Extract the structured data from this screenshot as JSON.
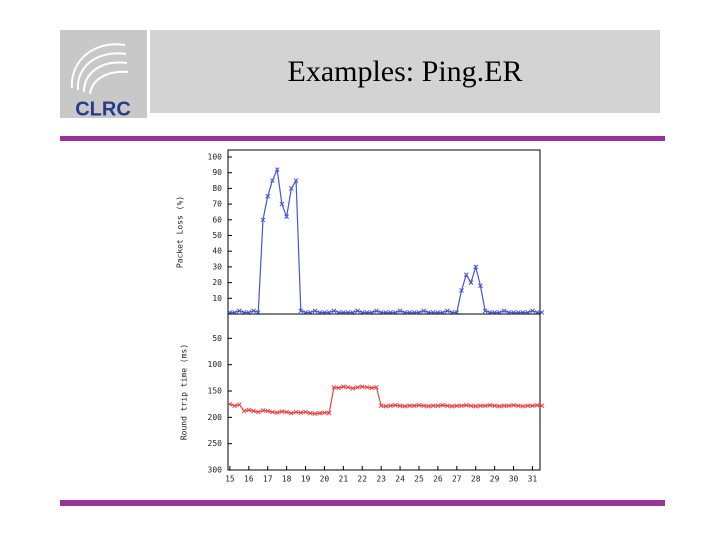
{
  "slide": {
    "title": "Examples: Ping.ER",
    "logo_text": "CLRC"
  },
  "chart_data": [
    {
      "type": "line",
      "ylabel": "Packet Loss (%)",
      "xlim": [
        14.9,
        31.4
      ],
      "ylim": [
        0,
        100
      ],
      "yticks": [
        10,
        20,
        30,
        40,
        50,
        60,
        70,
        80,
        90,
        100
      ],
      "x": [
        15,
        15.25,
        15.5,
        15.75,
        16,
        16.25,
        16.5,
        16.75,
        17,
        17.25,
        17.5,
        17.75,
        18,
        18.25,
        18.5,
        18.75,
        19,
        19.25,
        19.5,
        19.75,
        20,
        20.25,
        20.5,
        20.75,
        21,
        21.25,
        21.5,
        21.75,
        22,
        22.25,
        22.5,
        22.75,
        23,
        23.25,
        23.5,
        23.75,
        24,
        24.25,
        24.5,
        24.75,
        25,
        25.25,
        25.5,
        25.75,
        26,
        26.25,
        26.5,
        26.75,
        27,
        27.25,
        27.5,
        27.75,
        28,
        28.25,
        28.5,
        28.75,
        29,
        29.25,
        29.5,
        29.75,
        30,
        30.25,
        30.5,
        30.75,
        31,
        31.25,
        31.5
      ],
      "series": [
        {
          "name": "Packet Loss",
          "color": "#4455dd",
          "values": [
            1,
            1,
            2,
            1,
            1,
            2,
            1,
            60,
            75,
            85,
            92,
            70,
            62,
            80,
            85,
            2,
            1,
            1,
            2,
            1,
            1,
            1,
            2,
            1,
            1,
            1,
            1,
            2,
            1,
            1,
            1,
            2,
            1,
            1,
            1,
            1,
            2,
            1,
            1,
            1,
            1,
            2,
            1,
            1,
            1,
            1,
            2,
            1,
            1,
            15,
            25,
            20,
            30,
            18,
            2,
            1,
            1,
            1,
            2,
            1,
            1,
            1,
            1,
            1,
            2,
            1,
            1
          ]
        }
      ]
    },
    {
      "type": "line",
      "ylabel": "Round trip time (ms)",
      "y_inverted": true,
      "xlim": [
        14.9,
        31.4
      ],
      "ylim": [
        0,
        300
      ],
      "yticks": [
        50,
        100,
        150,
        200,
        250,
        300
      ],
      "xticks": [
        15,
        16,
        17,
        18,
        19,
        20,
        21,
        22,
        23,
        24,
        25,
        26,
        27,
        28,
        29,
        30,
        31
      ],
      "x": [
        15,
        15.25,
        15.5,
        15.75,
        16,
        16.25,
        16.5,
        16.75,
        17,
        17.25,
        17.5,
        17.75,
        18,
        18.25,
        18.5,
        18.75,
        19,
        19.25,
        19.5,
        19.75,
        20,
        20.25,
        20.5,
        20.75,
        21,
        21.25,
        21.5,
        21.75,
        22,
        22.25,
        22.5,
        22.75,
        23,
        23.25,
        23.5,
        23.75,
        24,
        24.25,
        24.5,
        24.75,
        25,
        25.25,
        25.5,
        25.75,
        26,
        26.25,
        26.5,
        26.75,
        27,
        27.25,
        27.5,
        27.75,
        28,
        28.25,
        28.5,
        28.75,
        29,
        29.25,
        29.5,
        29.75,
        30,
        30.25,
        30.5,
        30.75,
        31,
        31.25,
        31.5
      ],
      "series": [
        {
          "name": "Round trip time",
          "color": "#ee4444",
          "values": [
            175,
            178,
            176,
            188,
            186,
            188,
            190,
            187,
            188,
            190,
            191,
            189,
            190,
            192,
            190,
            191,
            190,
            192,
            193,
            192,
            191,
            192,
            143,
            144,
            142,
            143,
            145,
            143,
            142,
            143,
            144,
            143,
            178,
            179,
            178,
            177,
            178,
            179,
            178,
            178,
            177,
            178,
            179,
            178,
            178,
            177,
            178,
            179,
            178,
            178,
            177,
            178,
            179,
            178,
            178,
            177,
            178,
            179,
            178,
            178,
            177,
            178,
            179,
            178,
            178,
            177,
            178
          ]
        }
      ]
    }
  ]
}
